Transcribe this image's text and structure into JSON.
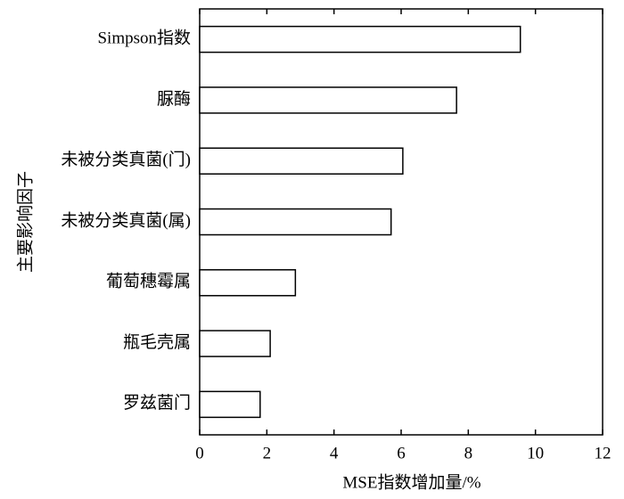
{
  "chart_data": {
    "type": "bar",
    "orientation": "horizontal",
    "categories": [
      "Simpson指数",
      "脲酶",
      "未被分类真菌(门)",
      "未被分类真菌(属)",
      "葡萄穗霉属",
      "瓶毛壳属",
      "罗兹菌门"
    ],
    "values": [
      9.55,
      7.65,
      6.05,
      5.7,
      2.85,
      2.1,
      1.8
    ],
    "color": "#ffffff",
    "x_label": "MSE指数增加量/%",
    "y_label": "主要影响因子",
    "xlim": [
      0,
      12
    ],
    "xticks": [
      0,
      2,
      4,
      6,
      8,
      10,
      12
    ],
    "grid": false
  }
}
